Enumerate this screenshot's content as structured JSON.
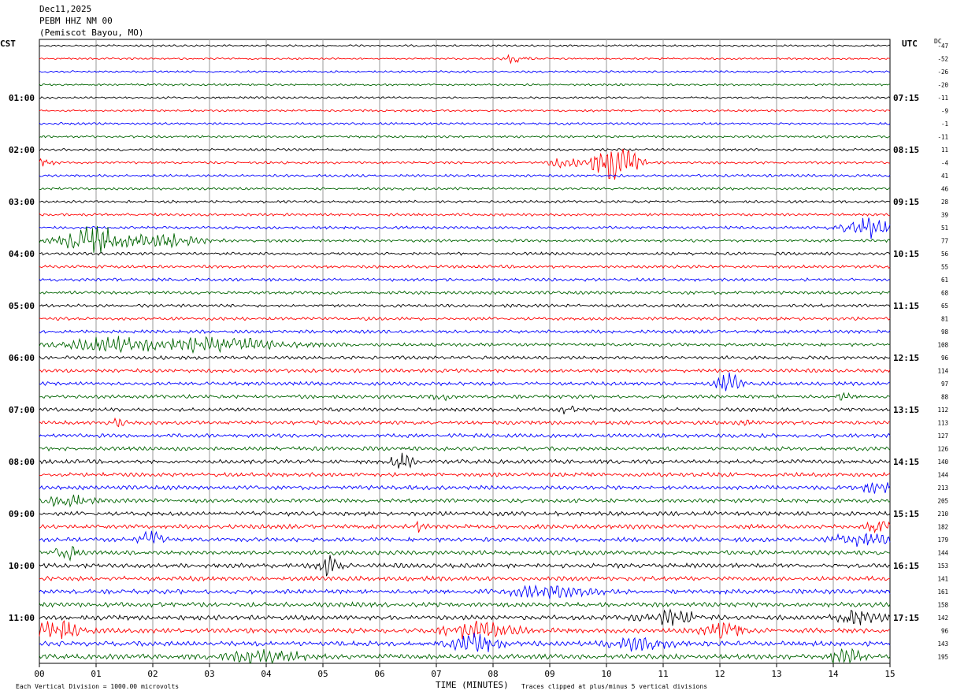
{
  "header": {
    "date": "Dec11,2025",
    "station": "PEBM HHZ NM 00",
    "location": "(Pemiscot Bayou, MO)"
  },
  "chart_data": {
    "type": "line",
    "left_axis_label": "CST",
    "right_axis_label": "UTC",
    "dc_label": "DC",
    "xlabel": "TIME (MINUTES)",
    "x_ticks": [
      "00",
      "01",
      "02",
      "03",
      "04",
      "05",
      "06",
      "07",
      "08",
      "09",
      "10",
      "11",
      "12",
      "13",
      "14",
      "15"
    ],
    "xlim": [
      0,
      15
    ],
    "left_time_labels": [
      {
        "row": 4,
        "label": "01:00"
      },
      {
        "row": 8,
        "label": "02:00"
      },
      {
        "row": 12,
        "label": "03:00"
      },
      {
        "row": 16,
        "label": "04:00"
      },
      {
        "row": 20,
        "label": "05:00"
      },
      {
        "row": 24,
        "label": "06:00"
      },
      {
        "row": 28,
        "label": "07:00"
      },
      {
        "row": 32,
        "label": "08:00"
      },
      {
        "row": 36,
        "label": "09:00"
      },
      {
        "row": 40,
        "label": "10:00"
      },
      {
        "row": 44,
        "label": "11:00"
      }
    ],
    "right_time_labels": [
      {
        "row": 4,
        "label": "07:15"
      },
      {
        "row": 8,
        "label": "08:15"
      },
      {
        "row": 12,
        "label": "09:15"
      },
      {
        "row": 16,
        "label": "10:15"
      },
      {
        "row": 20,
        "label": "11:15"
      },
      {
        "row": 24,
        "label": "12:15"
      },
      {
        "row": 28,
        "label": "13:15"
      },
      {
        "row": 32,
        "label": "14:15"
      },
      {
        "row": 36,
        "label": "15:15"
      },
      {
        "row": 40,
        "label": "16:15"
      },
      {
        "row": 44,
        "label": "17:15"
      }
    ],
    "dc_offsets": [
      -47,
      -52,
      -26,
      -20,
      -11,
      -9,
      -1,
      -11,
      11,
      -4,
      41,
      46,
      28,
      39,
      51,
      77,
      56,
      55,
      61,
      68,
      65,
      81,
      98,
      108,
      96,
      114,
      97,
      88,
      112,
      113,
      127,
      126,
      140,
      144,
      213,
      205,
      210,
      182,
      179,
      144,
      153,
      141,
      161,
      158,
      142,
      96,
      143,
      195
    ],
    "trace_colors": [
      "#000000",
      "#ff0000",
      "#0000ff",
      "#006400"
    ],
    "events": [
      {
        "row": 1,
        "minute": 8.4,
        "amp": 5,
        "width": 0.3
      },
      {
        "row": 9,
        "minute": 10.25,
        "amp": 22,
        "width": 0.45
      },
      {
        "row": 9,
        "minute": 9.2,
        "amp": 6,
        "width": 0.3
      },
      {
        "row": 9,
        "minute": 9.8,
        "amp": 6,
        "width": 0.5
      },
      {
        "row": 9,
        "minute": 0.1,
        "amp": 4,
        "width": 0.2
      },
      {
        "row": 14,
        "minute": 14.6,
        "amp": 12,
        "width": 0.6
      },
      {
        "row": 15,
        "minute": 1.0,
        "amp": 14,
        "width": 1.0
      },
      {
        "row": 15,
        "minute": 2.2,
        "amp": 6,
        "width": 1.0
      },
      {
        "row": 23,
        "minute": 3.0,
        "amp": 7,
        "width": 2.0
      },
      {
        "row": 23,
        "minute": 1.2,
        "amp": 6,
        "width": 1.2
      },
      {
        "row": 26,
        "minute": 12.15,
        "amp": 11,
        "width": 0.3
      },
      {
        "row": 27,
        "minute": 7.1,
        "amp": 4,
        "width": 0.2
      },
      {
        "row": 27,
        "minute": 14.2,
        "amp": 4,
        "width": 0.2
      },
      {
        "row": 28,
        "minute": 9.3,
        "amp": 4,
        "width": 0.2
      },
      {
        "row": 29,
        "minute": 1.4,
        "amp": 4,
        "width": 0.2
      },
      {
        "row": 29,
        "minute": 12.4,
        "amp": 3,
        "width": 0.2
      },
      {
        "row": 32,
        "minute": 6.4,
        "amp": 8,
        "width": 0.3
      },
      {
        "row": 34,
        "minute": 14.8,
        "amp": 5,
        "width": 0.5
      },
      {
        "row": 35,
        "minute": 0.5,
        "amp": 7,
        "width": 0.5
      },
      {
        "row": 37,
        "minute": 6.7,
        "amp": 5,
        "width": 0.2
      },
      {
        "row": 37,
        "minute": 14.8,
        "amp": 6,
        "width": 0.3
      },
      {
        "row": 38,
        "minute": 2.0,
        "amp": 9,
        "width": 0.3
      },
      {
        "row": 38,
        "minute": 14.5,
        "amp": 6,
        "width": 0.8
      },
      {
        "row": 39,
        "minute": 0.5,
        "amp": 7,
        "width": 0.3
      },
      {
        "row": 40,
        "minute": 5.1,
        "amp": 12,
        "width": 0.3
      },
      {
        "row": 42,
        "minute": 9.0,
        "amp": 6,
        "width": 1.0
      },
      {
        "row": 44,
        "minute": 11.2,
        "amp": 6,
        "width": 0.8
      },
      {
        "row": 44,
        "minute": 14.5,
        "amp": 7,
        "width": 0.6
      },
      {
        "row": 45,
        "minute": 0.3,
        "amp": 9,
        "width": 0.6
      },
      {
        "row": 45,
        "minute": 7.8,
        "amp": 8,
        "width": 1.0
      },
      {
        "row": 45,
        "minute": 12.1,
        "amp": 7,
        "width": 0.6
      },
      {
        "row": 46,
        "minute": 7.7,
        "amp": 9,
        "width": 0.6
      },
      {
        "row": 46,
        "minute": 10.6,
        "amp": 6,
        "width": 0.8
      },
      {
        "row": 47,
        "minute": 4.0,
        "amp": 6,
        "width": 1.0
      },
      {
        "row": 47,
        "minute": 14.2,
        "amp": 8,
        "width": 0.4
      }
    ]
  },
  "footer": {
    "scale_note": "Each Vertical Division = 1000.00 microvolts",
    "clip_note": "Traces clipped at plus/minus 5 vertical divisions"
  }
}
